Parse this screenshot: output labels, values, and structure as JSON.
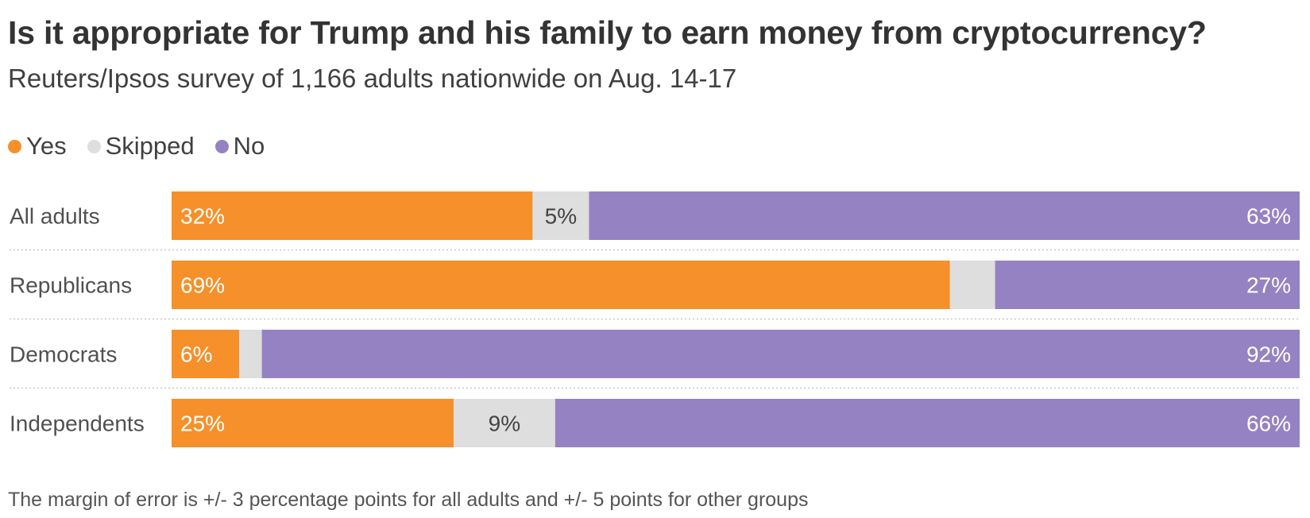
{
  "title": "Is it appropriate for Trump and his family to earn money from cryptocurrency?",
  "subtitle": "Reuters/Ipsos survey of 1,166 adults nationwide on Aug. 14-17",
  "footnote": "The margin of error is +/- 3 percentage points for all adults and +/- 5 points for other groups",
  "colors": {
    "yes": "#f5902a",
    "skipped": "#dedede",
    "no": "#9582c2"
  },
  "chart_data": {
    "type": "bar",
    "orientation": "horizontal",
    "stacked": true,
    "normalized": true,
    "categories": [
      "All adults",
      "Republicans",
      "Democrats",
      "Independents"
    ],
    "series": [
      {
        "name": "Yes",
        "values": [
          32,
          69,
          6,
          25
        ],
        "labels": [
          "32%",
          "69%",
          "6%",
          "25%"
        ]
      },
      {
        "name": "Skipped",
        "values": [
          5,
          4,
          2,
          9
        ],
        "labels": [
          "5%",
          "",
          "",
          "9%"
        ]
      },
      {
        "name": "No",
        "values": [
          63,
          27,
          92,
          66
        ],
        "labels": [
          "63%",
          "27%",
          "92%",
          "66%"
        ]
      }
    ],
    "legend_position": "top-left",
    "grid": false
  }
}
